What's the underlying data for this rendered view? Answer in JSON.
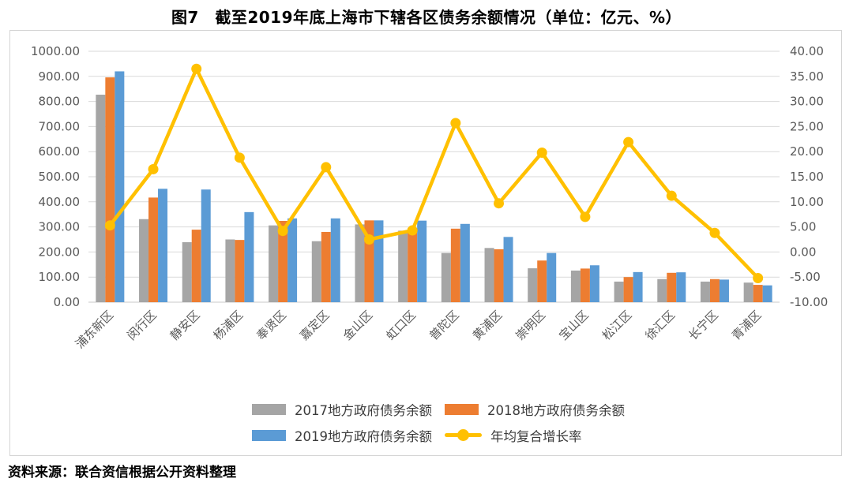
{
  "title": "图7　截至2019年底上海市下辖各区债务余额情况（单位：亿元、%）",
  "source_note": "资料来源：联合资信根据公开资料整理",
  "colors": {
    "grid": "#D9D9D9",
    "axis_line": "#C9C9C9",
    "axis_text": "#595959",
    "chart_border": "#D4D4D4",
    "bar_2017": "#A5A5A5",
    "bar_2018": "#ED7D31",
    "bar_2019": "#5B9BD5",
    "line_cagr": "#FFC000"
  },
  "chart_data": {
    "type": "bar",
    "subtype": "grouped bars with secondary-axis line",
    "title": "图7　截至2019年底上海市下辖各区债务余额情况（单位：亿元、%）",
    "categories": [
      "浦东新区",
      "闵行区",
      "静安区",
      "杨浦区",
      "奉贤区",
      "嘉定区",
      "金山区",
      "虹口区",
      "普陀区",
      "黄浦区",
      "崇明区",
      "宝山区",
      "松江区",
      "徐汇区",
      "长宁区",
      "青浦区"
    ],
    "series": [
      {
        "name": "2017地方政府债务余额",
        "type": "bar",
        "axis": "left",
        "color": "#A5A5A5",
        "values": [
          827,
          331,
          239,
          250,
          306,
          243,
          310,
          285,
          196,
          216,
          135,
          126,
          82,
          92,
          82,
          78
        ]
      },
      {
        "name": "2018地方政府债务余额",
        "type": "bar",
        "axis": "left",
        "color": "#ED7D31",
        "values": [
          896,
          417,
          289,
          248,
          324,
          280,
          326,
          296,
          293,
          211,
          166,
          134,
          100,
          117,
          92,
          69
        ]
      },
      {
        "name": "2019地方政府债务余额",
        "type": "bar",
        "axis": "left",
        "color": "#5B9BD5",
        "values": [
          920,
          452,
          449,
          359,
          334,
          334,
          326,
          325,
          312,
          260,
          196,
          147,
          120,
          119,
          90,
          67
        ]
      },
      {
        "name": "年均复合增长率",
        "type": "line",
        "axis": "right",
        "color": "#FFC000",
        "values": [
          5.3,
          16.5,
          36.5,
          18.8,
          4.2,
          16.9,
          2.5,
          4.3,
          25.7,
          9.7,
          19.8,
          7.0,
          21.9,
          11.2,
          3.8,
          -5.2
        ]
      }
    ],
    "left_axis": {
      "min": 0,
      "max": 1000,
      "step": 100,
      "unit": "亿元"
    },
    "right_axis": {
      "min": -10,
      "max": 40,
      "step": 5,
      "unit": "%"
    },
    "grid": true,
    "legend_position": "bottom"
  }
}
